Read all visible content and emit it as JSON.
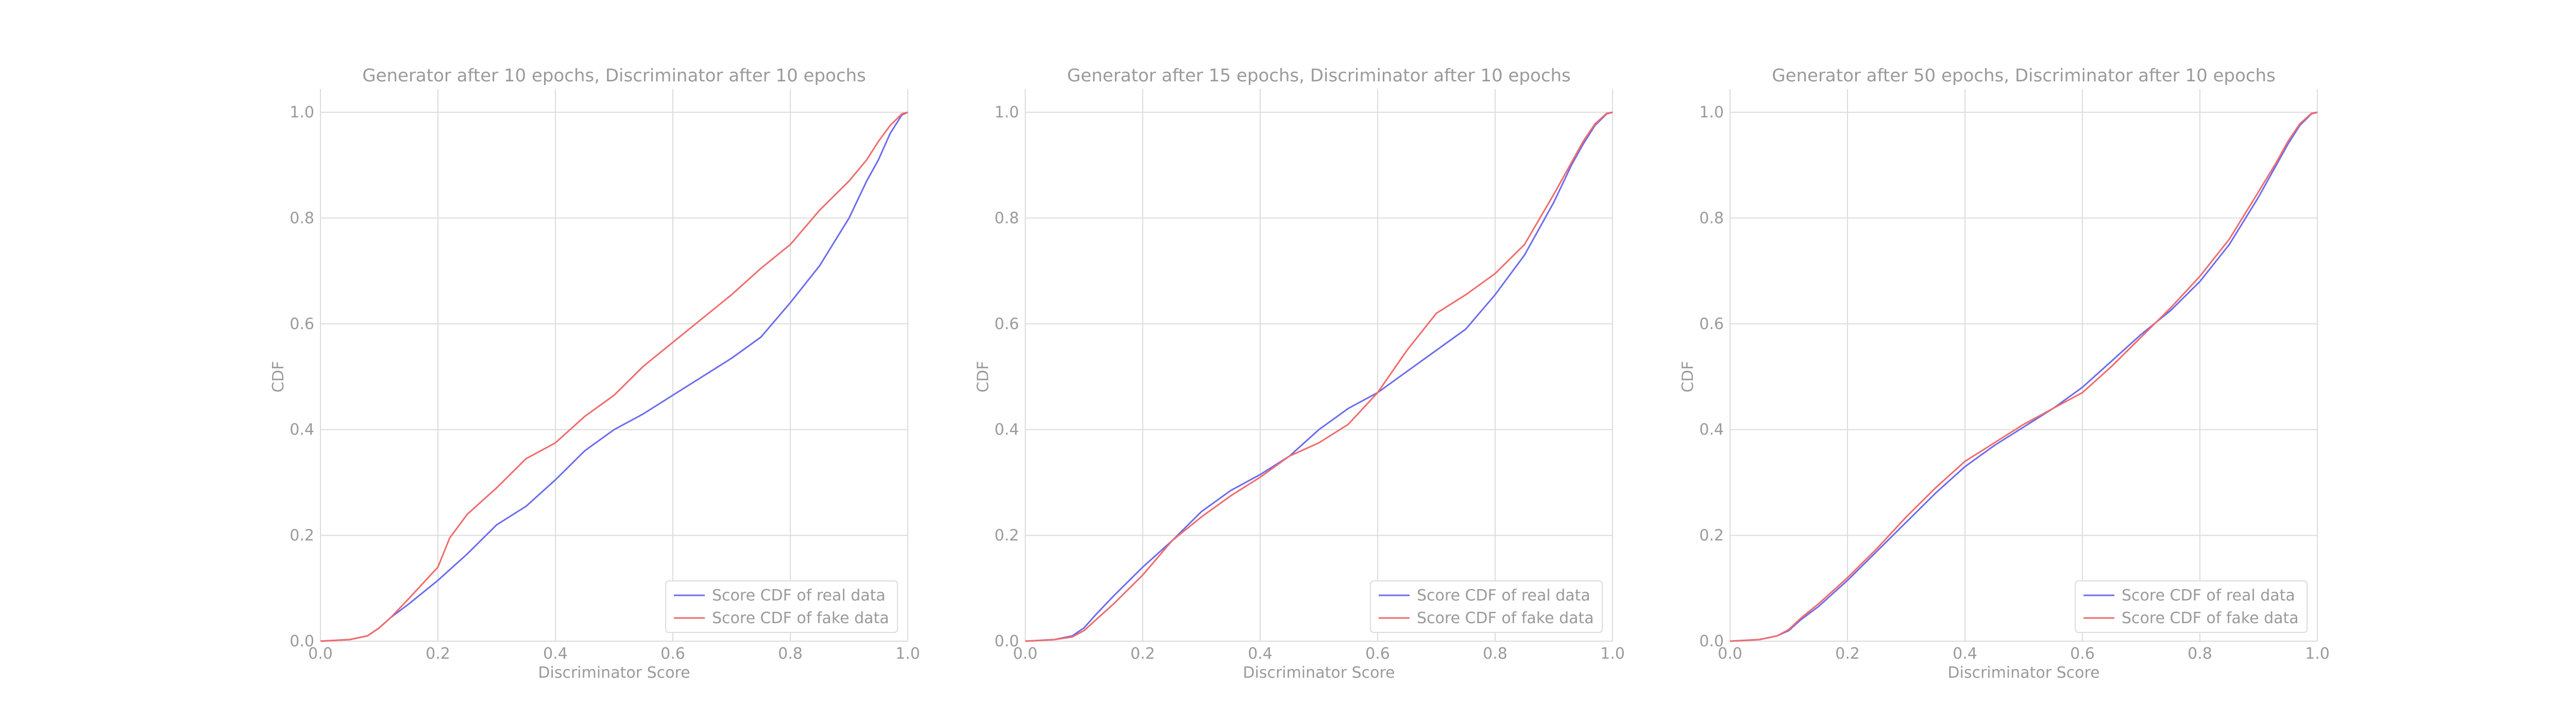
{
  "chart_data": [
    {
      "type": "line",
      "title": "Generator after 10 epochs,  Discriminator after 10 epochs",
      "xlabel": "Discriminator Score",
      "ylabel": "CDF",
      "xlim": [
        0,
        1
      ],
      "ylim": [
        0,
        1
      ],
      "xticks": [
        "0.0",
        "0.2",
        "0.4",
        "0.6",
        "0.8",
        "1.0"
      ],
      "yticks": [
        "0.0",
        "0.2",
        "0.4",
        "0.6",
        "0.8",
        "1.0"
      ],
      "grid": true,
      "legend_position": "bottom-right",
      "series": [
        {
          "name": "Score CDF of real data",
          "color": "#6b6bf0",
          "x": [
            0,
            0.05,
            0.08,
            0.1,
            0.12,
            0.15,
            0.2,
            0.25,
            0.3,
            0.35,
            0.4,
            0.45,
            0.5,
            0.55,
            0.6,
            0.65,
            0.7,
            0.75,
            0.8,
            0.85,
            0.9,
            0.93,
            0.95,
            0.97,
            0.99,
            1.0
          ],
          "y": [
            0,
            0.003,
            0.01,
            0.025,
            0.045,
            0.07,
            0.115,
            0.165,
            0.22,
            0.255,
            0.305,
            0.36,
            0.4,
            0.43,
            0.465,
            0.5,
            0.535,
            0.575,
            0.64,
            0.71,
            0.8,
            0.87,
            0.91,
            0.96,
            0.995,
            1.0
          ]
        },
        {
          "name": "Score CDF of fake data",
          "color": "#f06b6b",
          "x": [
            0,
            0.05,
            0.08,
            0.1,
            0.12,
            0.15,
            0.2,
            0.22,
            0.25,
            0.3,
            0.35,
            0.4,
            0.45,
            0.5,
            0.55,
            0.6,
            0.65,
            0.7,
            0.75,
            0.8,
            0.85,
            0.9,
            0.93,
            0.95,
            0.97,
            0.99,
            1.0
          ],
          "y": [
            0,
            0.003,
            0.01,
            0.025,
            0.045,
            0.08,
            0.14,
            0.195,
            0.24,
            0.29,
            0.345,
            0.375,
            0.425,
            0.465,
            0.52,
            0.565,
            0.61,
            0.655,
            0.705,
            0.75,
            0.815,
            0.87,
            0.91,
            0.945,
            0.975,
            0.997,
            1.0
          ]
        }
      ]
    },
    {
      "type": "line",
      "title": "Generator after 15 epochs,  Discriminator after 10 epochs",
      "xlabel": "Discriminator Score",
      "ylabel": "CDF",
      "xlim": [
        0,
        1
      ],
      "ylim": [
        0,
        1
      ],
      "xticks": [
        "0.0",
        "0.2",
        "0.4",
        "0.6",
        "0.8",
        "1.0"
      ],
      "yticks": [
        "0.0",
        "0.2",
        "0.4",
        "0.6",
        "0.8",
        "1.0"
      ],
      "grid": true,
      "legend_position": "bottom-right",
      "series": [
        {
          "name": "Score CDF of real data",
          "color": "#6b6bf0",
          "x": [
            0,
            0.05,
            0.08,
            0.1,
            0.12,
            0.15,
            0.2,
            0.25,
            0.3,
            0.35,
            0.4,
            0.45,
            0.5,
            0.55,
            0.6,
            0.65,
            0.7,
            0.75,
            0.8,
            0.85,
            0.9,
            0.93,
            0.95,
            0.97,
            0.99,
            1.0
          ],
          "y": [
            0,
            0.003,
            0.01,
            0.025,
            0.05,
            0.085,
            0.14,
            0.19,
            0.245,
            0.285,
            0.315,
            0.35,
            0.4,
            0.44,
            0.47,
            0.51,
            0.55,
            0.59,
            0.655,
            0.73,
            0.83,
            0.9,
            0.94,
            0.975,
            0.997,
            1.0
          ]
        },
        {
          "name": "Score CDF of fake data",
          "color": "#f06b6b",
          "x": [
            0,
            0.05,
            0.08,
            0.1,
            0.12,
            0.15,
            0.2,
            0.25,
            0.3,
            0.35,
            0.4,
            0.45,
            0.5,
            0.55,
            0.6,
            0.65,
            0.7,
            0.75,
            0.8,
            0.85,
            0.9,
            0.93,
            0.95,
            0.97,
            0.99,
            1.0
          ],
          "y": [
            0,
            0.003,
            0.008,
            0.02,
            0.04,
            0.07,
            0.125,
            0.19,
            0.235,
            0.275,
            0.31,
            0.35,
            0.375,
            0.41,
            0.47,
            0.55,
            0.62,
            0.655,
            0.695,
            0.75,
            0.845,
            0.905,
            0.945,
            0.978,
            0.998,
            1.0
          ]
        }
      ]
    },
    {
      "type": "line",
      "title": "Generator after 50 epochs,  Discriminator after 10 epochs",
      "xlabel": "Discriminator Score",
      "ylabel": "CDF",
      "xlim": [
        0,
        1
      ],
      "ylim": [
        0,
        1
      ],
      "xticks": [
        "0.0",
        "0.2",
        "0.4",
        "0.6",
        "0.8",
        "1.0"
      ],
      "yticks": [
        "0.0",
        "0.2",
        "0.4",
        "0.6",
        "0.8",
        "1.0"
      ],
      "grid": true,
      "legend_position": "bottom-right",
      "series": [
        {
          "name": "Score CDF of real data",
          "color": "#6b6bf0",
          "x": [
            0,
            0.05,
            0.08,
            0.1,
            0.12,
            0.15,
            0.2,
            0.25,
            0.3,
            0.35,
            0.4,
            0.45,
            0.5,
            0.55,
            0.6,
            0.65,
            0.7,
            0.75,
            0.8,
            0.85,
            0.9,
            0.93,
            0.95,
            0.97,
            0.99,
            1.0
          ],
          "y": [
            0,
            0.003,
            0.01,
            0.02,
            0.04,
            0.065,
            0.115,
            0.17,
            0.225,
            0.28,
            0.33,
            0.37,
            0.405,
            0.44,
            0.48,
            0.53,
            0.58,
            0.625,
            0.68,
            0.75,
            0.84,
            0.9,
            0.94,
            0.975,
            0.997,
            1.0
          ]
        },
        {
          "name": "Score CDF of fake data",
          "color": "#f06b6b",
          "x": [
            0,
            0.05,
            0.08,
            0.1,
            0.12,
            0.15,
            0.2,
            0.25,
            0.3,
            0.35,
            0.4,
            0.45,
            0.5,
            0.55,
            0.6,
            0.65,
            0.7,
            0.75,
            0.8,
            0.85,
            0.9,
            0.93,
            0.95,
            0.97,
            0.99,
            1.0
          ],
          "y": [
            0,
            0.003,
            0.01,
            0.022,
            0.043,
            0.07,
            0.12,
            0.175,
            0.235,
            0.29,
            0.34,
            0.375,
            0.41,
            0.44,
            0.47,
            0.52,
            0.575,
            0.63,
            0.69,
            0.76,
            0.85,
            0.905,
            0.945,
            0.978,
            0.998,
            1.0
          ]
        }
      ]
    }
  ]
}
